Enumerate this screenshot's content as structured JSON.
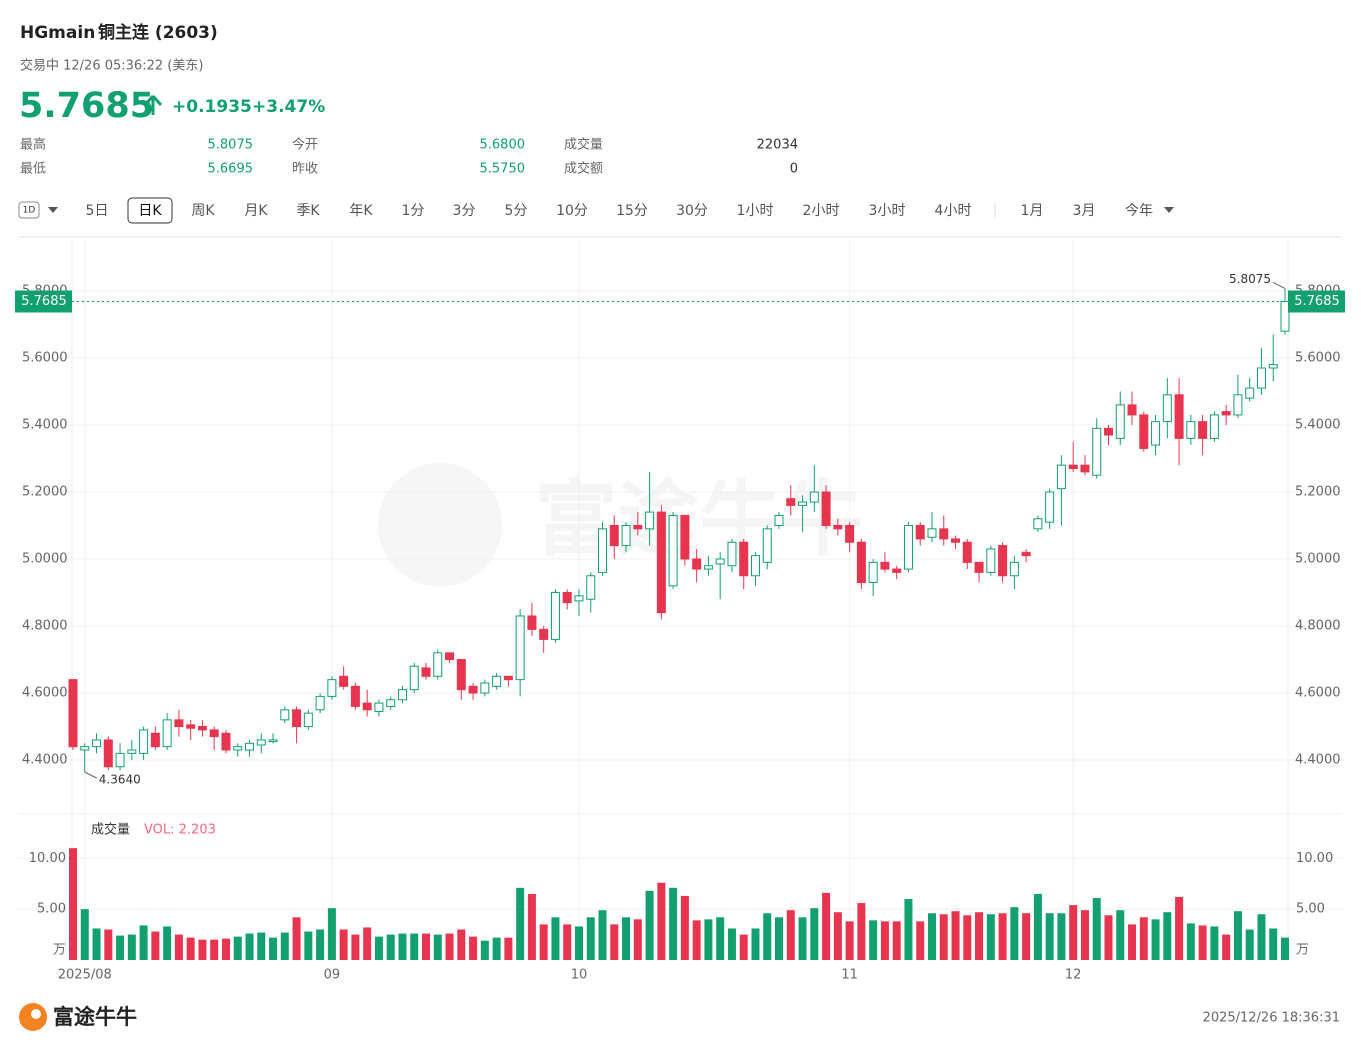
{
  "header": {
    "symbol": "HGmain",
    "name": "铜主连 (2603)",
    "status": "交易中 12/26 05:36:22 (美东)",
    "price": 5.7685,
    "change": "+0.1935",
    "change_pct": "+3.47%"
  },
  "stats": [
    {
      "label": "最高",
      "value": "5.8075"
    },
    {
      "label": "最低",
      "value": "5.6695"
    },
    {
      "label": "今开",
      "value": "5.6800"
    },
    {
      "label": "昨收",
      "value": "5.5750"
    },
    {
      "label": "成交量",
      "value": "22034"
    },
    {
      "label": "成交额",
      "value": "0"
    }
  ],
  "toolbar": {
    "period_select": "1D",
    "tabs": [
      "5日",
      "日K",
      "周K",
      "月K",
      "季K",
      "年K",
      "1分",
      "3分",
      "5分",
      "10分",
      "15分",
      "30分",
      "1小时",
      "2小时",
      "3小时",
      "4小时",
      "1月",
      "3月",
      "今年"
    ],
    "active": "日K"
  },
  "chart_data": {
    "type": "candlestick",
    "up_color": "#12a06e",
    "down_color": "#e8354f",
    "grid": true,
    "categories": [
      null,
      "2025/08",
      null,
      null,
      null,
      null,
      null,
      null,
      null,
      null,
      null,
      null,
      null,
      null,
      null,
      null,
      null,
      null,
      null,
      null,
      null,
      null,
      "09",
      null,
      null,
      null,
      null,
      null,
      null,
      null,
      null,
      null,
      null,
      null,
      null,
      null,
      null,
      null,
      null,
      null,
      null,
      null,
      null,
      "10",
      null,
      null,
      null,
      null,
      null,
      null,
      null,
      null,
      null,
      null,
      null,
      null,
      null,
      null,
      null,
      null,
      null,
      null,
      null,
      null,
      null,
      null,
      "11",
      null,
      null,
      null,
      null,
      null,
      null,
      null,
      null,
      null,
      null,
      null,
      null,
      null,
      null,
      null,
      null,
      null,
      null,
      "12",
      null,
      null,
      null,
      null,
      null,
      null,
      null,
      null,
      null,
      null,
      null,
      null,
      null,
      null,
      null,
      null,
      null,
      null
    ],
    "open": [
      4.64,
      4.43,
      4.44,
      4.46,
      4.38,
      4.42,
      4.42,
      4.48,
      4.44,
      4.52,
      4.505,
      4.5,
      4.49,
      4.48,
      4.43,
      4.43,
      4.445,
      4.455,
      4.52,
      4.55,
      4.5,
      4.55,
      4.59,
      4.65,
      4.62,
      4.57,
      4.545,
      4.56,
      4.58,
      4.61,
      4.675,
      4.65,
      4.72,
      4.7,
      4.62,
      4.6,
      4.62,
      4.65,
      4.64,
      4.83,
      4.79,
      4.76,
      4.9,
      4.875,
      4.88,
      4.96,
      5.1,
      5.04,
      5.1,
      5.09,
      5.14,
      4.92,
      5.13,
      5.0,
      4.97,
      4.985,
      4.98,
      5.05,
      4.95,
      4.99,
      5.1,
      5.18,
      5.16,
      5.17,
      5.2,
      5.1,
      5.1,
      5.05,
      4.93,
      4.99,
      4.97,
      4.97,
      5.1,
      5.065,
      5.09,
      5.06,
      5.05,
      4.99,
      4.96,
      5.04,
      4.95,
      5.02,
      5.09,
      5.11,
      5.21,
      5.28,
      5.28,
      5.25,
      5.39,
      5.36,
      5.46,
      5.43,
      5.34,
      5.41,
      5.49,
      5.36,
      5.41,
      5.36,
      5.44,
      5.43,
      5.48,
      5.51,
      5.57,
      5.68
    ],
    "high": [
      4.64,
      4.45,
      4.48,
      4.47,
      4.45,
      4.46,
      4.5,
      4.5,
      4.54,
      4.55,
      4.52,
      4.52,
      4.5,
      4.49,
      4.45,
      4.46,
      4.48,
      4.48,
      4.56,
      4.56,
      4.55,
      4.6,
      4.65,
      4.68,
      4.63,
      4.61,
      4.58,
      4.59,
      4.62,
      4.69,
      4.69,
      4.73,
      4.72,
      4.7,
      4.63,
      4.64,
      4.66,
      4.65,
      4.85,
      4.87,
      4.8,
      4.91,
      4.91,
      4.91,
      4.96,
      5.11,
      5.13,
      5.11,
      5.14,
      5.26,
      5.16,
      5.14,
      5.13,
      5.03,
      5.01,
      5.02,
      5.06,
      5.06,
      5.02,
      5.1,
      5.14,
      5.22,
      5.19,
      5.28,
      5.22,
      5.12,
      5.11,
      5.06,
      5.0,
      5.02,
      4.98,
      5.11,
      5.11,
      5.14,
      5.13,
      5.07,
      5.06,
      4.99,
      5.04,
      5.05,
      5.01,
      5.03,
      5.13,
      5.21,
      5.31,
      5.35,
      5.31,
      5.42,
      5.4,
      5.5,
      5.5,
      5.44,
      5.43,
      5.54,
      5.54,
      5.43,
      5.43,
      5.44,
      5.46,
      5.55,
      5.54,
      5.63,
      5.67,
      5.8075
    ],
    "low": [
      4.43,
      4.364,
      4.42,
      4.37,
      4.37,
      4.4,
      4.4,
      4.43,
      4.43,
      4.47,
      4.46,
      4.47,
      4.43,
      4.42,
      4.41,
      4.41,
      4.42,
      4.45,
      4.51,
      4.45,
      4.49,
      4.54,
      4.58,
      4.61,
      4.55,
      4.53,
      4.53,
      4.55,
      4.57,
      4.6,
      4.64,
      4.64,
      4.69,
      4.58,
      4.58,
      4.59,
      4.61,
      4.62,
      4.59,
      4.77,
      4.72,
      4.75,
      4.85,
      4.83,
      4.84,
      4.95,
      5.0,
      5.02,
      5.07,
      5.04,
      4.82,
      4.91,
      4.98,
      4.93,
      4.95,
      4.88,
      4.96,
      4.91,
      4.92,
      4.97,
      5.09,
      5.13,
      5.08,
      5.14,
      5.09,
      5.07,
      5.02,
      4.91,
      4.89,
      4.96,
      4.94,
      4.96,
      5.04,
      5.05,
      5.04,
      5.03,
      4.97,
      4.93,
      4.95,
      4.93,
      4.91,
      4.99,
      5.08,
      5.09,
      5.1,
      5.26,
      5.25,
      5.24,
      5.34,
      5.34,
      5.4,
      5.32,
      5.31,
      5.36,
      5.28,
      5.34,
      5.31,
      5.35,
      5.4,
      5.42,
      5.47,
      5.49,
      5.53,
      5.6695
    ],
    "close": [
      4.44,
      4.44,
      4.46,
      4.38,
      4.42,
      4.43,
      4.49,
      4.44,
      4.52,
      4.5,
      4.495,
      4.49,
      4.47,
      4.43,
      4.44,
      4.45,
      4.46,
      4.46,
      4.55,
      4.5,
      4.54,
      4.59,
      4.64,
      4.62,
      4.56,
      4.55,
      4.57,
      4.58,
      4.61,
      4.68,
      4.65,
      4.72,
      4.7,
      4.61,
      4.6,
      4.63,
      4.65,
      4.64,
      4.83,
      4.79,
      4.76,
      4.9,
      4.87,
      4.89,
      4.95,
      5.09,
      5.04,
      5.1,
      5.09,
      5.14,
      4.84,
      5.13,
      5.0,
      4.97,
      4.98,
      5.0,
      5.05,
      4.95,
      5.01,
      5.09,
      5.13,
      5.16,
      5.17,
      5.2,
      5.1,
      5.09,
      5.05,
      4.93,
      4.99,
      4.97,
      4.96,
      5.1,
      5.06,
      5.09,
      5.06,
      5.05,
      4.99,
      4.96,
      5.03,
      4.95,
      4.99,
      5.01,
      5.12,
      5.2,
      5.28,
      5.27,
      5.26,
      5.39,
      5.37,
      5.46,
      5.43,
      5.33,
      5.41,
      5.49,
      5.36,
      5.41,
      5.36,
      5.43,
      5.43,
      5.49,
      5.51,
      5.57,
      5.58,
      5.7685
    ],
    "volume": [
      11.0,
      5.0,
      3.1,
      3.0,
      2.4,
      2.5,
      3.4,
      2.8,
      3.3,
      2.5,
      2.2,
      2.0,
      2.0,
      2.1,
      2.3,
      2.6,
      2.7,
      2.2,
      2.7,
      4.2,
      2.8,
      3.0,
      5.1,
      3.0,
      2.5,
      3.2,
      2.3,
      2.5,
      2.6,
      2.6,
      2.6,
      2.5,
      2.6,
      3.0,
      2.3,
      1.9,
      2.2,
      2.2,
      7.1,
      6.5,
      3.5,
      4.2,
      3.5,
      3.3,
      4.2,
      4.9,
      3.5,
      4.2,
      4.0,
      6.8,
      7.6,
      7.1,
      6.3,
      3.9,
      4.0,
      4.2,
      3.1,
      2.5,
      3.1,
      4.6,
      4.2,
      4.9,
      4.2,
      5.1,
      6.6,
      4.7,
      3.8,
      5.6,
      3.9,
      3.8,
      3.8,
      6.0,
      3.8,
      4.6,
      4.5,
      4.8,
      4.4,
      4.7,
      4.5,
      4.6,
      5.2,
      4.6,
      6.5,
      4.6,
      4.6,
      5.4,
      4.9,
      6.1,
      4.4,
      4.9,
      3.5,
      4.2,
      4.0,
      4.7,
      6.2,
      3.6,
      3.4,
      3.3,
      2.5,
      4.8,
      3.0,
      4.5,
      3.1,
      2.203
    ],
    "ylim": [
      4.245,
      5.952
    ],
    "yticks": [
      {
        "value": 4.4,
        "label": "4.4000"
      },
      {
        "value": 4.6,
        "label": "4.6000"
      },
      {
        "value": 4.8,
        "label": "4.8000"
      },
      {
        "value": 5.0,
        "label": "5.0000"
      },
      {
        "value": 5.2,
        "label": "5.2000"
      },
      {
        "value": 5.4,
        "label": "5.4000"
      },
      {
        "value": 5.6,
        "label": "5.6000"
      },
      {
        "value": 5.8,
        "label": "5.8000"
      }
    ],
    "last_price": 5.7685,
    "high_marker": 5.8075,
    "low_marker": {
      "value": 4.364,
      "label": "4.3640"
    },
    "volume_panel": {
      "title": "成交量",
      "label": "VOL: 2.203",
      "ylim": [
        0,
        12
      ],
      "yticks": [
        {
          "value": 0,
          "label": "万"
        },
        {
          "value": 5,
          "label": "5.00"
        },
        {
          "value": 10,
          "label": "10.00"
        }
      ]
    }
  },
  "watermark": "富途牛牛",
  "footer": {
    "logo": "富途牛牛",
    "timestamp": "2025/12/26 18:36:31"
  }
}
